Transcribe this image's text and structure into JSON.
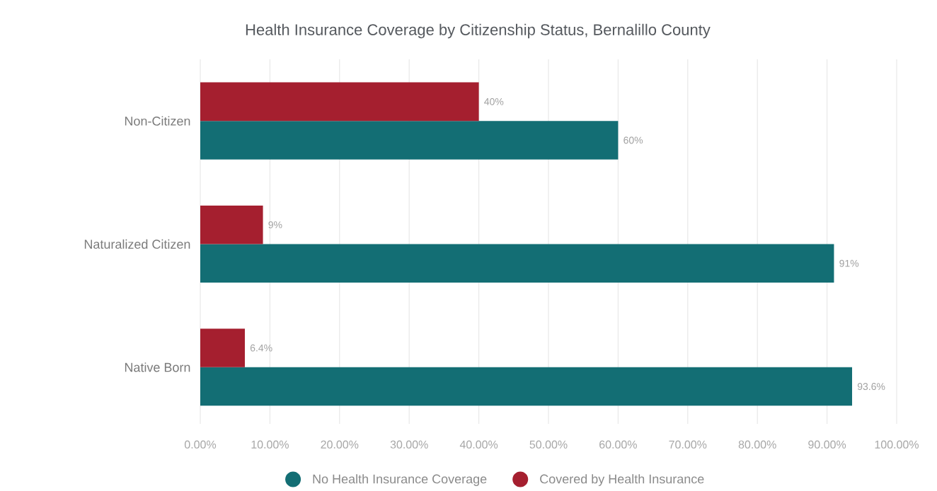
{
  "chart_data": {
    "type": "bar",
    "orientation": "horizontal",
    "title": "Health Insurance Coverage by Citizenship Status, Bernalillo County",
    "categories": [
      "Non-Citizen",
      "Naturalized Citizen",
      "Native Born"
    ],
    "series": [
      {
        "name": "No Health Insurance Coverage",
        "color": "#136e74",
        "values": [
          60,
          91,
          93.6
        ],
        "value_labels": [
          "60%",
          "91%",
          "93.6%"
        ]
      },
      {
        "name": "Covered by Health Insurance",
        "color": "#a51f2f",
        "values": [
          40,
          9,
          6.4
        ],
        "value_labels": [
          "40%",
          "9%",
          "6.4%"
        ]
      }
    ],
    "xlim": [
      0,
      100
    ],
    "xticks": [
      {
        "value": 0,
        "label": "0.00%"
      },
      {
        "value": 10,
        "label": "10.00%"
      },
      {
        "value": 20,
        "label": "20.00%"
      },
      {
        "value": 30,
        "label": "30.00%"
      },
      {
        "value": 40,
        "label": "40.00%"
      },
      {
        "value": 50,
        "label": "50.00%"
      },
      {
        "value": 60,
        "label": "60.00%"
      },
      {
        "value": 70,
        "label": "70.00%"
      },
      {
        "value": 80,
        "label": "80.00%"
      },
      {
        "value": 90,
        "label": "90.00%"
      },
      {
        "value": 100,
        "label": "100.00%"
      }
    ],
    "grid": "x",
    "legend": "bottom"
  }
}
